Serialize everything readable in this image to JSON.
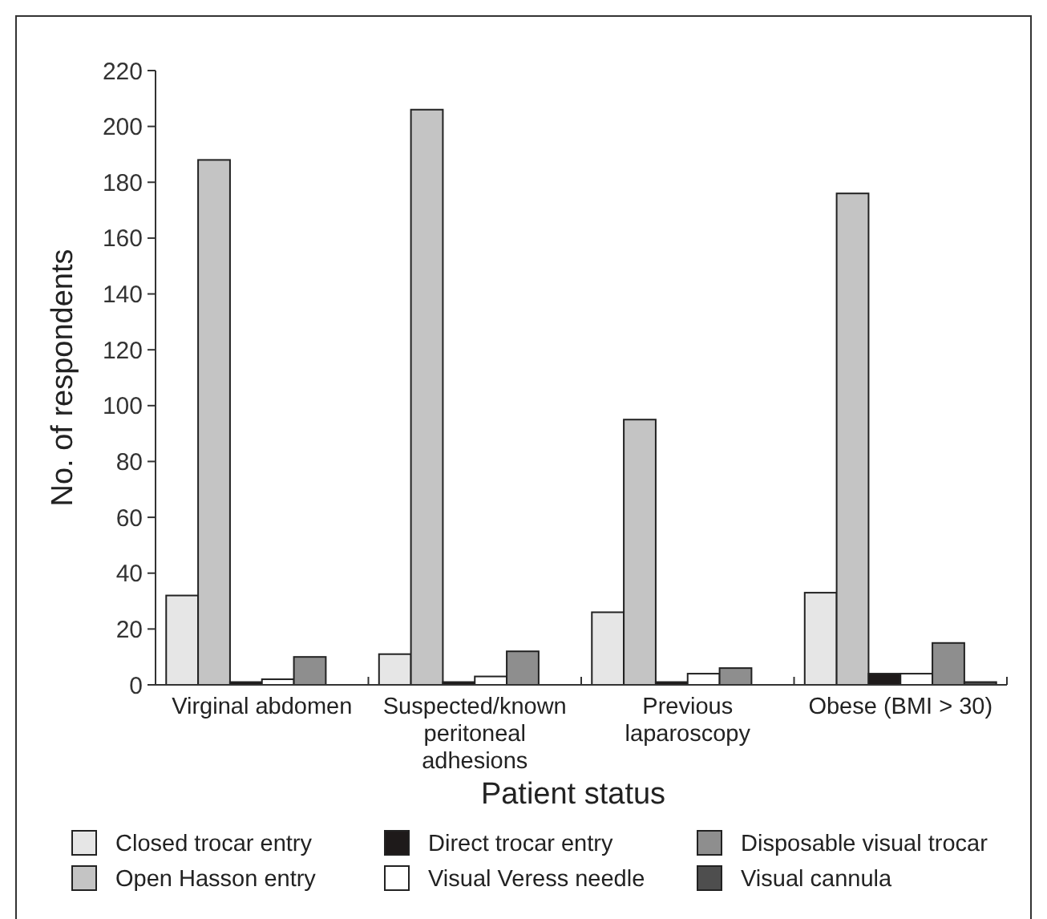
{
  "chart_data": {
    "type": "bar",
    "xlabel": "Patient status",
    "ylabel": "No. of respondents",
    "categories": [
      "Virginal abdomen",
      "Suspected/known peritoneal adhesions",
      "Previous laparoscopy",
      "Obese (BMI > 30)"
    ],
    "series": [
      {
        "name": "Closed trocar entry",
        "color": "#e6e6e6",
        "values": [
          32,
          11,
          26,
          33
        ]
      },
      {
        "name": "Open Hasson entry",
        "color": "#c4c4c4",
        "values": [
          188,
          206,
          95,
          176
        ]
      },
      {
        "name": "Direct trocar entry",
        "color": "#1e1a1a",
        "values": [
          1,
          1,
          1,
          4
        ]
      },
      {
        "name": "Visual Veress needle",
        "color": "#ffffff",
        "values": [
          2,
          3,
          4,
          4
        ]
      },
      {
        "name": "Disposable visual trocar",
        "color": "#8e8e8e",
        "values": [
          10,
          12,
          6,
          15
        ]
      },
      {
        "name": "Visual cannula",
        "color": "#4e4e4e",
        "values": [
          0,
          0,
          0,
          1
        ]
      }
    ],
    "ylim": [
      0,
      220
    ],
    "yticks": [
      0,
      20,
      40,
      60,
      80,
      100,
      120,
      140,
      160,
      180,
      200,
      220
    ],
    "grid": false,
    "legend": "bottom"
  }
}
